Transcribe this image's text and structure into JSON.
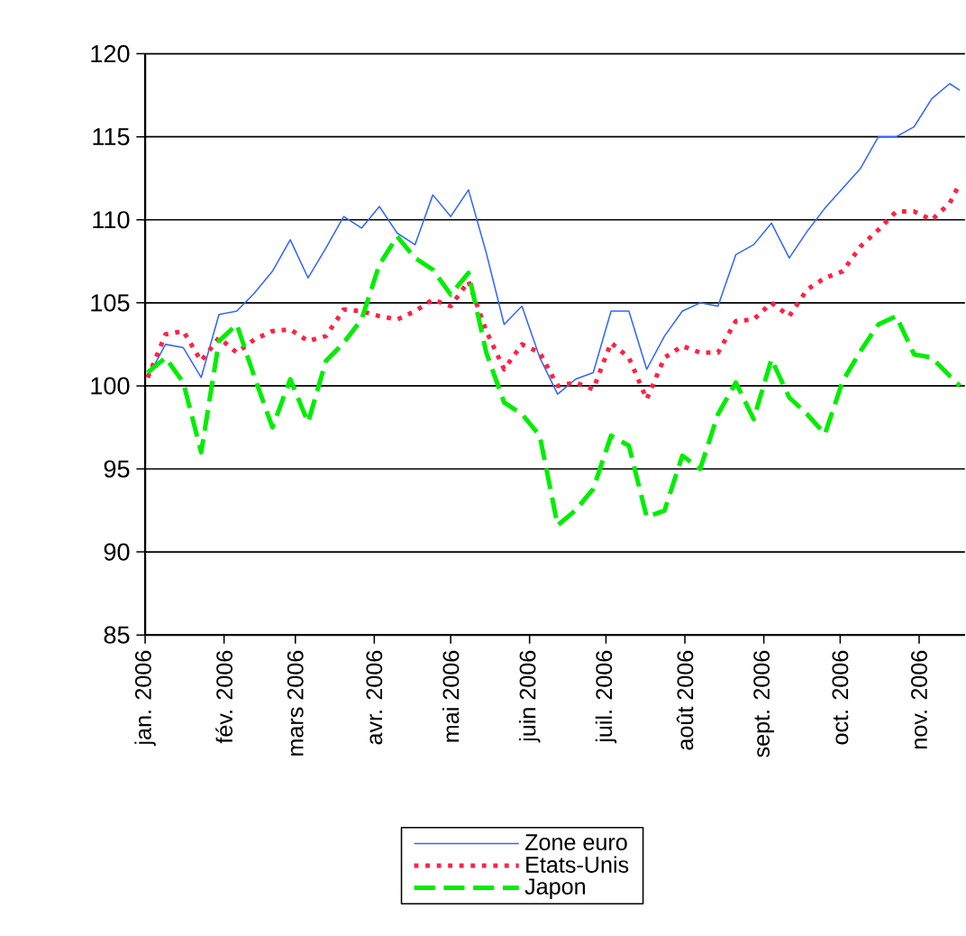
{
  "chart_data": {
    "type": "line",
    "x": [
      "2006-01-02",
      "2006-01-09",
      "2006-01-16",
      "2006-01-23",
      "2006-01-30",
      "2006-02-06",
      "2006-02-13",
      "2006-02-20",
      "2006-02-27",
      "2006-03-06",
      "2006-03-13",
      "2006-03-20",
      "2006-03-27",
      "2006-04-03",
      "2006-04-10",
      "2006-04-17",
      "2006-04-24",
      "2006-05-01",
      "2006-05-08",
      "2006-05-15",
      "2006-05-22",
      "2006-05-29",
      "2006-06-05",
      "2006-06-12",
      "2006-06-19",
      "2006-06-26",
      "2006-07-03",
      "2006-07-10",
      "2006-07-17",
      "2006-07-24",
      "2006-07-31",
      "2006-08-07",
      "2006-08-14",
      "2006-08-21",
      "2006-08-28",
      "2006-09-04",
      "2006-09-11",
      "2006-09-18",
      "2006-09-25",
      "2006-10-02",
      "2006-10-09",
      "2006-10-16",
      "2006-10-23",
      "2006-10-30",
      "2006-11-06",
      "2006-11-13",
      "2006-11-17"
    ],
    "series": [
      {
        "name": "Zone euro",
        "color": "#3366ff",
        "line_style": "solid",
        "values": [
          100.5,
          102.5,
          102.3,
          100.5,
          104.3,
          104.5,
          105.6,
          106.9,
          108.8,
          106.5,
          108.3,
          110.2,
          109.5,
          110.8,
          109.2,
          108.5,
          111.5,
          110.2,
          111.8,
          108,
          103.7,
          104.8,
          101.7,
          99.5,
          100.4,
          100.8,
          104.5,
          104.5,
          101,
          103,
          104.5,
          105,
          104.8,
          107.9,
          108.5,
          109.8,
          107.7,
          109.3,
          110.7,
          111.9,
          113.1,
          115,
          115,
          115.6,
          117.3,
          118.2,
          117.8
        ]
      },
      {
        "name": "Etats-Unis",
        "color": "#ff2244",
        "line_style": "dotted",
        "values": [
          100.5,
          103.1,
          103.3,
          101.5,
          102.9,
          102,
          102.8,
          103.3,
          103.4,
          102.7,
          103,
          104.6,
          104.5,
          104.2,
          104,
          104.5,
          105.2,
          104.8,
          106.3,
          103.3,
          101,
          102.5,
          102,
          100,
          100.2,
          99.8,
          102.6,
          101.7,
          99.2,
          101.7,
          102.4,
          102,
          102,
          103.9,
          104,
          105,
          104.2,
          105.8,
          106.5,
          106.9,
          108.4,
          109.4,
          110.5,
          110.5,
          110,
          111,
          112.2
        ]
      },
      {
        "name": "Japon",
        "color": "#00ee00",
        "line_style": "dashed",
        "values": [
          100.8,
          101.7,
          100.2,
          96,
          102.7,
          103.7,
          100.5,
          97.5,
          100.4,
          97.8,
          101.5,
          102.6,
          104,
          107.3,
          109,
          107.7,
          107,
          105.5,
          106.8,
          102,
          99,
          98.3,
          97,
          91.6,
          92.5,
          93.8,
          97,
          96.4,
          92.1,
          92.5,
          95.8,
          95,
          98.3,
          100.2,
          98,
          101.6,
          99.3,
          98.3,
          97.1,
          100.3,
          102.1,
          103.7,
          104.2,
          101.9,
          101.7,
          100.6,
          100
        ]
      }
    ],
    "xlim": [
      "2006-01-01",
      "2006-11-19"
    ],
    "xticks": [
      {
        "value": "2006-01-01",
        "label": "jan. 2006"
      },
      {
        "value": "2006-02-01",
        "label": "fév. 2006"
      },
      {
        "value": "2006-03-01",
        "label": "mars 2006"
      },
      {
        "value": "2006-04-01",
        "label": "avr. 2006"
      },
      {
        "value": "2006-05-01",
        "label": "mai 2006"
      },
      {
        "value": "2006-06-01",
        "label": "juin 2006"
      },
      {
        "value": "2006-07-01",
        "label": "juil. 2006"
      },
      {
        "value": "2006-08-01",
        "label": "août 2006"
      },
      {
        "value": "2006-09-01",
        "label": "sept. 2006"
      },
      {
        "value": "2006-10-01",
        "label": "oct. 2006"
      },
      {
        "value": "2006-11-01",
        "label": "nov. 2006"
      }
    ],
    "ylim": [
      85,
      120
    ],
    "yticks": [
      85,
      90,
      95,
      100,
      105,
      110,
      115,
      120
    ],
    "grid": "y",
    "legend": "bottom",
    "marker": "none"
  }
}
